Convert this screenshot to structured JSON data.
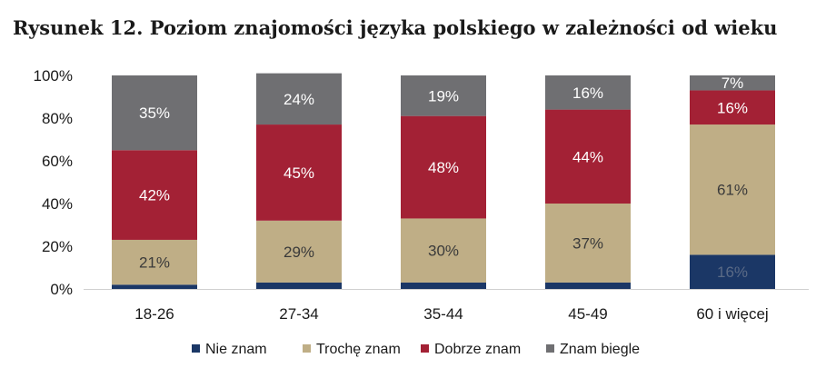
{
  "chart_data": {
    "type": "bar",
    "stacked": true,
    "title": "Rysunek 12. Poziom znajomości języka polskiego w zależności od wieku",
    "categories": [
      "18-26",
      "27-34",
      "35-44",
      "45-49",
      "60 i więcej"
    ],
    "series": [
      {
        "name": "Nie znam",
        "color": "#1b3766",
        "values": [
          2,
          3,
          3,
          3,
          16
        ],
        "labels": [
          "",
          "",
          "",
          "",
          "16%"
        ]
      },
      {
        "name": "Trochę znam",
        "color": "#bfae86",
        "values": [
          21,
          29,
          30,
          37,
          61
        ],
        "labels": [
          "21%",
          "29%",
          "30%",
          "37%",
          "61%"
        ]
      },
      {
        "name": "Dobrze znam",
        "color": "#a32135",
        "values": [
          42,
          45,
          48,
          44,
          16
        ],
        "labels": [
          "42%",
          "45%",
          "48%",
          "44%",
          "16%"
        ]
      },
      {
        "name": "Znam biegle",
        "color": "#6f6f72",
        "values": [
          35,
          24,
          19,
          16,
          7
        ],
        "labels": [
          "35%",
          "24%",
          "19%",
          "16%",
          "7%"
        ]
      }
    ],
    "yticks": [
      "0%",
      "20%",
      "40%",
      "60%",
      "80%",
      "100%"
    ],
    "ylim": [
      0,
      100
    ],
    "grid": false,
    "legend_position": "bottom"
  }
}
